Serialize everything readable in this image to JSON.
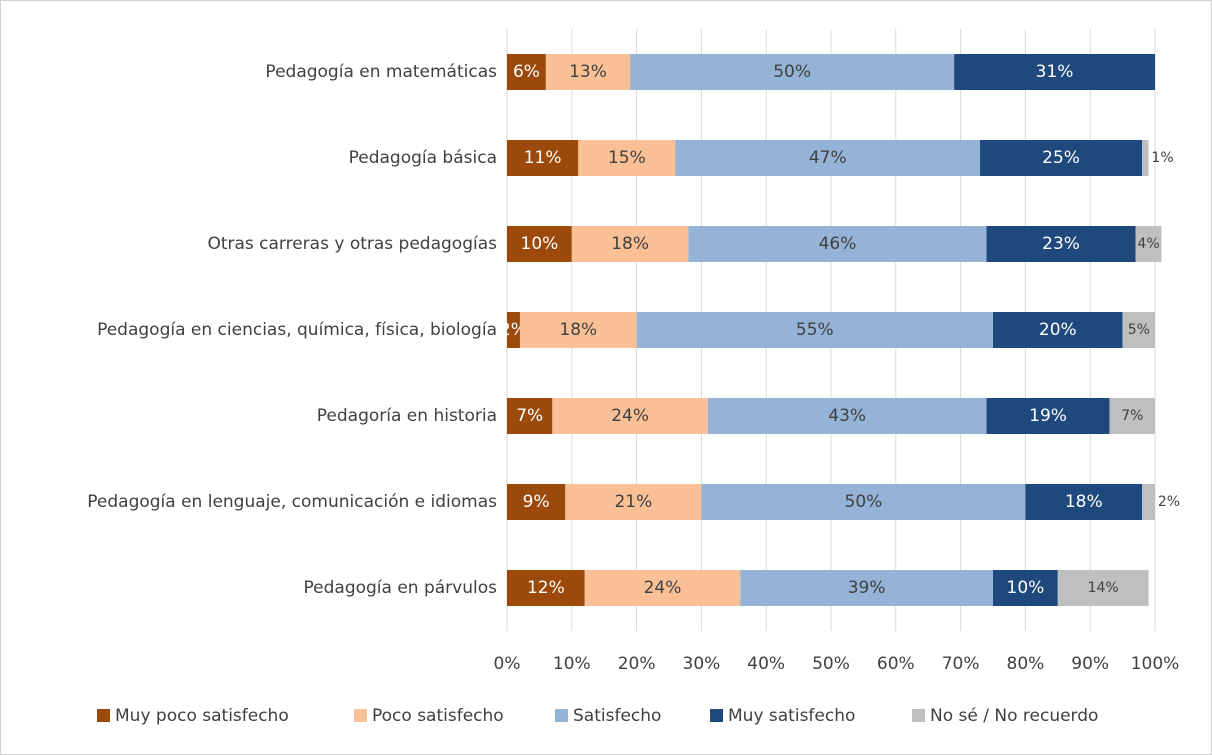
{
  "chart_data": {
    "type": "stacked-barh",
    "categories": [
      "Pedagogía en matemáticas",
      "Pedagogía básica",
      "Otras carreras y otras pedagogías",
      "Pedagogía en ciencias, química, física, biología",
      "Pedagoría en historia",
      "Pedagogía en lenguaje, comunicación e idiomas",
      "Pedagogía en párvulos"
    ],
    "series": [
      {
        "name": "Muy poco satisfecho",
        "color": "#9c4a0b",
        "values": [
          6,
          11,
          10,
          2,
          7,
          9,
          12
        ],
        "value_labels": [
          "6%",
          "11%",
          "10%",
          "2%",
          "7%",
          "9%",
          "12%"
        ]
      },
      {
        "name": "Poco satisfecho",
        "color": "#f9c096",
        "values": [
          13,
          15,
          18,
          18,
          24,
          21,
          24
        ],
        "value_labels": [
          "13%",
          "15%",
          "18%",
          "18%",
          "24%",
          "21%",
          "24%"
        ]
      },
      {
        "name": "Satisfecho",
        "color": "#95b3d7",
        "values": [
          50,
          47,
          46,
          55,
          43,
          50,
          39
        ],
        "value_labels": [
          "50%",
          "47%",
          "46%",
          "55%",
          "43%",
          "50%",
          "39%"
        ]
      },
      {
        "name": "Muy satisfecho",
        "color": "#1f497d",
        "values": [
          31,
          25,
          23,
          20,
          19,
          18,
          10
        ],
        "value_labels": [
          "31%",
          "25%",
          "23%",
          "20%",
          "19%",
          "18%",
          "10%"
        ]
      },
      {
        "name": "No sé / No recuerdo",
        "color": "#bfbfbf",
        "values": [
          null,
          1,
          4,
          5,
          7,
          2,
          14
        ],
        "value_labels": [
          null,
          "1%",
          "4%",
          "5%",
          "7%",
          "2%",
          "14%"
        ]
      }
    ],
    "xlim": [
      0,
      100
    ],
    "xticks": [
      {
        "value": 0,
        "label": "0%"
      },
      {
        "value": 10,
        "label": "10%"
      },
      {
        "value": 20,
        "label": "20%"
      },
      {
        "value": 30,
        "label": "30%"
      },
      {
        "value": 40,
        "label": "40%"
      },
      {
        "value": 50,
        "label": "50%"
      },
      {
        "value": 60,
        "label": "60%"
      },
      {
        "value": 70,
        "label": "70%"
      },
      {
        "value": 80,
        "label": "80%"
      },
      {
        "value": 90,
        "label": "90%"
      },
      {
        "value": 100,
        "label": "100%"
      }
    ],
    "grid": true,
    "legend": "bottom"
  }
}
